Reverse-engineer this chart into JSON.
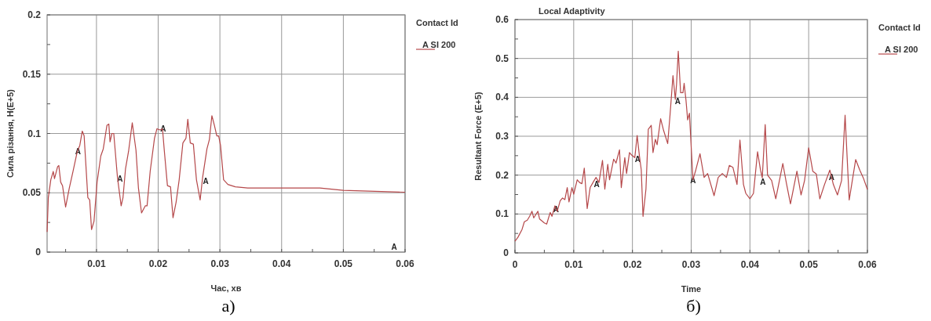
{
  "chart_data": [
    {
      "type": "line",
      "xlabel": "Час, хв",
      "ylabel": "Сила різання, Н(E+5)",
      "legend_title": "Contact Id",
      "legend": "top right",
      "grid": true,
      "marker": "none",
      "line_style": "solid",
      "xlim": [
        0.002,
        0.06
      ],
      "ylim": [
        0,
        0.2
      ],
      "xticks": [
        {
          "value": 0.005,
          "label": null
        },
        0.01,
        {
          "value": 0.015,
          "label": null
        },
        0.02,
        {
          "value": 0.025,
          "label": null
        },
        0.03,
        {
          "value": 0.035,
          "label": null
        },
        0.04,
        {
          "value": 0.045,
          "label": null
        },
        0.05,
        {
          "value": 0.055,
          "label": null
        },
        0.06
      ],
      "yticks": [
        0,
        {
          "value": 0.025,
          "label": null
        },
        0.05,
        {
          "value": 0.075,
          "label": null
        },
        0.1,
        {
          "value": 0.125,
          "label": null
        },
        0.15,
        {
          "value": 0.175,
          "label": null
        },
        0.2
      ],
      "series": [
        {
          "name": "A SI 200",
          "color": "#b5484a",
          "x": [
            0.002,
            0.0022,
            0.0026,
            0.003,
            0.0032,
            0.0037,
            0.0039,
            0.0042,
            0.0045,
            0.005,
            0.0056,
            0.0062,
            0.0069,
            0.0073,
            0.0077,
            0.008,
            0.0086,
            0.0089,
            0.0092,
            0.0096,
            0.0101,
            0.0107,
            0.0111,
            0.0117,
            0.012,
            0.0122,
            0.0125,
            0.0128,
            0.0134,
            0.014,
            0.0143,
            0.0147,
            0.0152,
            0.0158,
            0.0164,
            0.0168,
            0.0173,
            0.0179,
            0.0182,
            0.0187,
            0.0194,
            0.0198,
            0.0203,
            0.0207,
            0.021,
            0.0215,
            0.022,
            0.0224,
            0.0229,
            0.0234,
            0.024,
            0.0245,
            0.0248,
            0.0252,
            0.0257,
            0.0262,
            0.0268,
            0.0272,
            0.0279,
            0.0283,
            0.0287,
            0.0291,
            0.0295,
            0.0298,
            0.0301,
            0.0306,
            0.0313,
            0.0325,
            0.0345,
            0.0462,
            0.05,
            0.06
          ],
          "values": [
            0.017,
            0.046,
            0.061,
            0.068,
            0.062,
            0.072,
            0.073,
            0.059,
            0.056,
            0.038,
            0.054,
            0.068,
            0.085,
            0.09,
            0.102,
            0.098,
            0.046,
            0.044,
            0.019,
            0.026,
            0.059,
            0.081,
            0.087,
            0.107,
            0.108,
            0.093,
            0.1,
            0.1,
            0.063,
            0.039,
            0.046,
            0.07,
            0.085,
            0.109,
            0.086,
            0.054,
            0.033,
            0.039,
            0.039,
            0.068,
            0.096,
            0.104,
            0.103,
            0.104,
            0.085,
            0.056,
            0.055,
            0.029,
            0.042,
            0.061,
            0.092,
            0.096,
            0.112,
            0.092,
            0.091,
            0.061,
            0.044,
            0.063,
            0.087,
            0.095,
            0.115,
            0.107,
            0.098,
            0.098,
            0.09,
            0.061,
            0.057,
            0.055,
            0.054,
            0.054,
            0.052,
            0.0505
          ]
        }
      ],
      "annotations": [
        {
          "text": "A",
          "x": 0.007,
          "y": 0.085
        },
        {
          "text": "A",
          "x": 0.0138,
          "y": 0.062
        },
        {
          "text": "A",
          "x": 0.0208,
          "y": 0.104
        },
        {
          "text": "A",
          "x": 0.0277,
          "y": 0.06
        },
        "A",
        "a)"
      ]
    },
    {
      "type": "line",
      "title": "Local Adaptivity",
      "xlabel": "Time",
      "ylabel": "Resultant Force (E+5)",
      "legend_title": "Contact Id",
      "legend": "top right",
      "grid": true,
      "marker": "none",
      "line_style": "solid",
      "xlim": [
        0,
        0.06
      ],
      "ylim": [
        0,
        0.6
      ],
      "xticks": [
        0,
        {
          "value": 0.005,
          "label": null
        },
        0.01,
        {
          "value": 0.015,
          "label": null
        },
        0.02,
        {
          "value": 0.025,
          "label": null
        },
        0.03,
        {
          "value": 0.035,
          "label": null
        },
        0.04,
        {
          "value": 0.045,
          "label": null
        },
        0.05,
        {
          "value": 0.055,
          "label": null
        },
        0.06
      ],
      "yticks": [
        0,
        {
          "value": 0.05,
          "label": null
        },
        0.1,
        {
          "value": 0.15,
          "label": null
        },
        0.2,
        {
          "value": 0.25,
          "label": null
        },
        0.3,
        {
          "value": 0.35,
          "label": null
        },
        0.4,
        {
          "value": 0.45,
          "label": null
        },
        0.5,
        {
          "value": 0.55,
          "label": null
        },
        0.6
      ],
      "series": [
        {
          "name": "A SI 200",
          "color": "#b5484a",
          "x": [
            0,
            0.0005,
            0.0012,
            0.0016,
            0.0021,
            0.0025,
            0.0029,
            0.0032,
            0.0039,
            0.0042,
            0.005,
            0.0054,
            0.006,
            0.0063,
            0.0068,
            0.0072,
            0.0077,
            0.0081,
            0.0085,
            0.0089,
            0.0092,
            0.0097,
            0.01,
            0.0106,
            0.011,
            0.0114,
            0.0118,
            0.0123,
            0.0128,
            0.0134,
            0.0138,
            0.0143,
            0.0149,
            0.0153,
            0.0158,
            0.0161,
            0.0168,
            0.0172,
            0.0178,
            0.0181,
            0.0187,
            0.019,
            0.0195,
            0.0199,
            0.0204,
            0.0208,
            0.0212,
            0.0215,
            0.0218,
            0.0223,
            0.0227,
            0.0232,
            0.0235,
            0.0239,
            0.0242,
            0.0248,
            0.0253,
            0.026,
            0.0264,
            0.0269,
            0.0273,
            0.0275,
            0.0278,
            0.0282,
            0.0286,
            0.0288,
            0.0291,
            0.0294,
            0.0297,
            0.0299,
            0.0303,
            0.0308,
            0.0315,
            0.0322,
            0.0328,
            0.0339,
            0.0346,
            0.0353,
            0.036,
            0.0365,
            0.0371,
            0.0378,
            0.0383,
            0.0389,
            0.0393,
            0.04,
            0.0406,
            0.0413,
            0.0418,
            0.0421,
            0.0426,
            0.043,
            0.0437,
            0.0444,
            0.0456,
            0.0462,
            0.0469,
            0.048,
            0.0487,
            0.0493,
            0.05,
            0.0507,
            0.0513,
            0.0519,
            0.0527,
            0.0536,
            0.0542,
            0.0549,
            0.0556,
            0.0562,
            0.0569,
            0.058,
            0.0587,
            0.0593,
            0.06
          ],
          "values": [
            0.03,
            0.04,
            0.06,
            0.08,
            0.084,
            0.094,
            0.107,
            0.09,
            0.107,
            0.087,
            0.077,
            0.074,
            0.104,
            0.094,
            0.121,
            0.107,
            0.134,
            0.141,
            0.137,
            0.168,
            0.131,
            0.168,
            0.151,
            0.188,
            0.181,
            0.178,
            0.218,
            0.114,
            0.168,
            0.184,
            0.194,
            0.181,
            0.238,
            0.164,
            0.228,
            0.188,
            0.241,
            0.231,
            0.265,
            0.168,
            0.245,
            0.204,
            0.258,
            0.251,
            0.245,
            0.302,
            0.248,
            0.214,
            0.094,
            0.164,
            0.318,
            0.328,
            0.258,
            0.292,
            0.278,
            0.345,
            0.315,
            0.281,
            0.355,
            0.456,
            0.395,
            0.432,
            0.519,
            0.412,
            0.412,
            0.436,
            0.395,
            0.342,
            0.359,
            0.302,
            0.188,
            0.214,
            0.255,
            0.194,
            0.204,
            0.147,
            0.194,
            0.204,
            0.194,
            0.225,
            0.22,
            0.176,
            0.29,
            0.176,
            0.153,
            0.139,
            0.153,
            0.26,
            0.213,
            0.193,
            0.33,
            0.2,
            0.186,
            0.139,
            0.23,
            0.18,
            0.126,
            0.21,
            0.149,
            0.186,
            0.27,
            0.21,
            0.203,
            0.139,
            0.176,
            0.213,
            0.176,
            0.149,
            0.186,
            0.354,
            0.136,
            0.24,
            0.213,
            0.193,
            0.163
          ]
        }
      ],
      "annotations": [
        {
          "text": "A",
          "x": 0.007,
          "y": 0.113
        },
        {
          "text": "A",
          "x": 0.0139,
          "y": 0.177
        },
        {
          "text": "A",
          "x": 0.0209,
          "y": 0.242
        },
        {
          "text": "A",
          "x": 0.0277,
          "y": 0.39
        },
        {
          "text": "A",
          "x": 0.0303,
          "y": 0.188
        },
        {
          "text": "A",
          "x": 0.0422,
          "y": 0.183
        },
        {
          "text": "A",
          "x": 0.0539,
          "y": 0.195
        },
        "б)"
      ]
    }
  ]
}
